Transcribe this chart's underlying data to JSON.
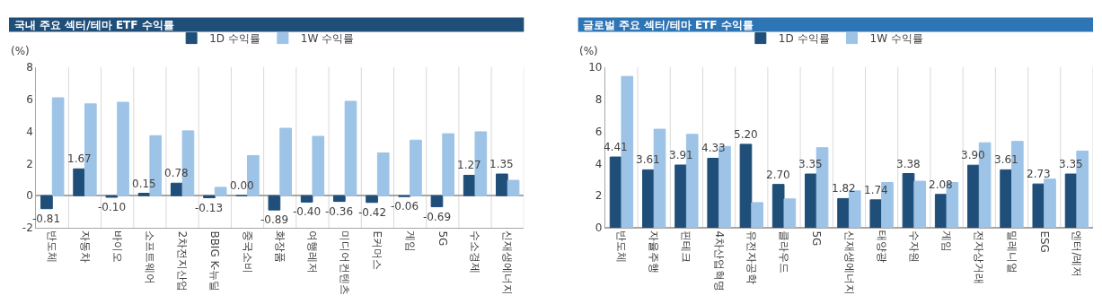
{
  "chart_data": [
    {
      "type": "bar",
      "title": "국내 주요 섹터/테마 ETF 수익률",
      "ylabel": "(%)",
      "categories": [
        "반도체",
        "자동차",
        "바이오",
        "소프트웨어",
        "2차전지산업",
        "BBIG K-뉴딜",
        "중국소비",
        "화장품",
        "여행레저",
        "미디어컨텐츠",
        "E커머스",
        "게임",
        "5G",
        "수소경제",
        "신재생에너지"
      ],
      "series": [
        {
          "name": "1D 수익률",
          "color": "#1f4e79",
          "values": [
            -0.81,
            1.67,
            -0.1,
            0.15,
            0.78,
            -0.13,
            0.0,
            -0.89,
            -0.4,
            -0.36,
            -0.42,
            -0.06,
            -0.69,
            1.27,
            1.35
          ],
          "value_labels": [
            "-0.81",
            "1.67",
            "-0.10",
            "0.15",
            "0.78",
            "-0.13",
            "0.00",
            "-0.89",
            "-0.40",
            "-0.36",
            "-0.42",
            "-0.06",
            "-0.69",
            "1.27",
            "1.35"
          ]
        },
        {
          "name": "1W 수익률",
          "color": "#9dc3e6",
          "values": [
            6.1,
            5.72,
            5.82,
            3.74,
            4.04,
            0.52,
            2.5,
            4.2,
            3.7,
            5.88,
            2.66,
            3.46,
            3.86,
            3.98,
            0.96
          ]
        }
      ],
      "ylim": [
        -2,
        8
      ],
      "yticks": [
        -2,
        0,
        2,
        4,
        6,
        8
      ],
      "grid": "x",
      "legend": "top"
    },
    {
      "type": "bar",
      "title": "글로벌 주요 섹터/테마 ETF 수익률",
      "ylabel": "(%)",
      "categories": [
        "반도체",
        "자율주행",
        "핀테크",
        "4차산업혁명",
        "유전자공학",
        "클라우드",
        "5G",
        "신재생에너지",
        "태양광",
        "수자원",
        "게임",
        "전자상거래",
        "밀레니얼",
        "ESG",
        "엔터/레저"
      ],
      "series": [
        {
          "name": "1D 수익률",
          "color": "#1f4e79",
          "values": [
            4.41,
            3.61,
            3.91,
            4.33,
            5.2,
            2.7,
            3.35,
            1.82,
            1.74,
            3.38,
            2.08,
            3.9,
            3.61,
            2.73,
            3.35
          ],
          "value_labels": [
            "4.41",
            "3.61",
            "3.91",
            "4.33",
            "5.20",
            "2.70",
            "3.35",
            "1.82",
            "1.74",
            "3.38",
            "2.08",
            "3.90",
            "3.61",
            "2.73",
            "3.35"
          ]
        },
        {
          "name": "1W 수익률",
          "color": "#9dc3e6",
          "values": [
            9.43,
            6.14,
            5.82,
            5.07,
            1.57,
            1.8,
            4.99,
            2.3,
            2.82,
            2.9,
            2.82,
            5.3,
            5.38,
            3.03,
            4.78
          ]
        }
      ],
      "ylim": [
        0,
        10
      ],
      "yticks": [
        0,
        2,
        4,
        6,
        8,
        10
      ],
      "grid": "x",
      "legend": "top"
    }
  ]
}
